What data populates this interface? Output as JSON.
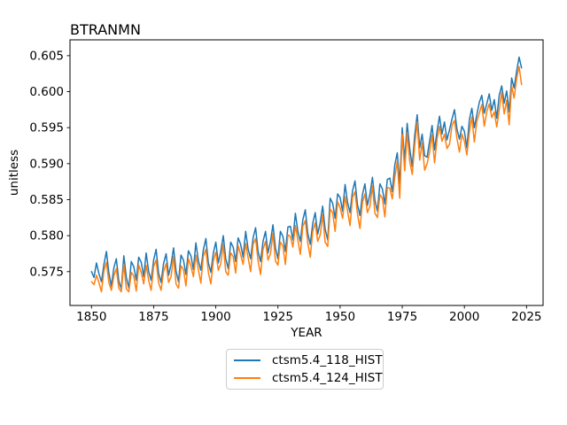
{
  "figure": {
    "title": "BTRANMN",
    "xlabel": "YEAR",
    "ylabel": "unitless"
  },
  "legend": {
    "entries": [
      {
        "label": "ctsm5.4_118_HIST",
        "color": "#1f77b4"
      },
      {
        "label": "ctsm5.4_124_HIST",
        "color": "#ff7f0e"
      }
    ]
  },
  "chart_data": {
    "type": "line",
    "title": "BTRANMN",
    "xlabel": "YEAR",
    "ylabel": "unitless",
    "grid": false,
    "legend_position": "below-axes-center",
    "xlim": [
      1841.35,
      2031.65
    ],
    "ylim": [
      0.5703,
      0.6072
    ],
    "xticks": [
      1850,
      1875,
      1900,
      1925,
      1950,
      1975,
      2000,
      2025
    ],
    "xtick_labels": [
      "1850",
      "1875",
      "1900",
      "1925",
      "1950",
      "1975",
      "2000",
      "2025"
    ],
    "yticks": [
      0.575,
      0.58,
      0.585,
      0.59,
      0.595,
      0.6,
      0.605
    ],
    "ytick_labels": [
      "0.575",
      "0.580",
      "0.585",
      "0.590",
      "0.595",
      "0.600",
      "0.605"
    ],
    "x": [
      1850,
      1851,
      1852,
      1853,
      1854,
      1855,
      1856,
      1857,
      1858,
      1859,
      1860,
      1861,
      1862,
      1863,
      1864,
      1865,
      1866,
      1867,
      1868,
      1869,
      1870,
      1871,
      1872,
      1873,
      1874,
      1875,
      1876,
      1877,
      1878,
      1879,
      1880,
      1881,
      1882,
      1883,
      1884,
      1885,
      1886,
      1887,
      1888,
      1889,
      1890,
      1891,
      1892,
      1893,
      1894,
      1895,
      1896,
      1897,
      1898,
      1899,
      1900,
      1901,
      1902,
      1903,
      1904,
      1905,
      1906,
      1907,
      1908,
      1909,
      1910,
      1911,
      1912,
      1913,
      1914,
      1915,
      1916,
      1917,
      1918,
      1919,
      1920,
      1921,
      1922,
      1923,
      1924,
      1925,
      1926,
      1927,
      1928,
      1929,
      1930,
      1931,
      1932,
      1933,
      1934,
      1935,
      1936,
      1937,
      1938,
      1939,
      1940,
      1941,
      1942,
      1943,
      1944,
      1945,
      1946,
      1947,
      1948,
      1949,
      1950,
      1951,
      1952,
      1953,
      1954,
      1955,
      1956,
      1957,
      1958,
      1959,
      1960,
      1961,
      1962,
      1963,
      1964,
      1965,
      1966,
      1967,
      1968,
      1969,
      1970,
      1971,
      1972,
      1973,
      1974,
      1975,
      1976,
      1977,
      1978,
      1979,
      1980,
      1981,
      1982,
      1983,
      1984,
      1985,
      1986,
      1987,
      1988,
      1989,
      1990,
      1991,
      1992,
      1993,
      1994,
      1995,
      1996,
      1997,
      1998,
      1999,
      2000,
      2001,
      2002,
      2003,
      2004,
      2005,
      2006,
      2007,
      2008,
      2009,
      2010,
      2011,
      2012,
      2013,
      2014,
      2015,
      2016,
      2017,
      2018,
      2019,
      2020,
      2021,
      2022,
      2023
    ],
    "series": [
      {
        "name": "ctsm5.4_118_HIST",
        "color": "#1f77b4",
        "values": [
          0.575,
          0.5742,
          0.5762,
          0.5747,
          0.5736,
          0.576,
          0.5778,
          0.5748,
          0.573,
          0.5755,
          0.5768,
          0.5737,
          0.5726,
          0.5772,
          0.5742,
          0.5727,
          0.5764,
          0.5757,
          0.5738,
          0.577,
          0.5763,
          0.5743,
          0.5776,
          0.575,
          0.5738,
          0.5766,
          0.5781,
          0.5748,
          0.5735,
          0.5761,
          0.5775,
          0.5745,
          0.576,
          0.5783,
          0.5751,
          0.5736,
          0.5773,
          0.5766,
          0.5746,
          0.5779,
          0.5772,
          0.5753,
          0.579,
          0.5765,
          0.5752,
          0.578,
          0.5796,
          0.5762,
          0.5749,
          0.5776,
          0.5791,
          0.5762,
          0.5778,
          0.58,
          0.5768,
          0.5754,
          0.5791,
          0.5784,
          0.5764,
          0.5797,
          0.5788,
          0.577,
          0.5806,
          0.5781,
          0.5768,
          0.5797,
          0.5811,
          0.5778,
          0.5764,
          0.5792,
          0.5806,
          0.5776,
          0.5792,
          0.5815,
          0.5783,
          0.5768,
          0.5806,
          0.5799,
          0.5778,
          0.5812,
          0.5813,
          0.5794,
          0.5831,
          0.5806,
          0.5792,
          0.5822,
          0.5836,
          0.5803,
          0.5788,
          0.5817,
          0.5832,
          0.5802,
          0.5818,
          0.5841,
          0.5809,
          0.5794,
          0.5852,
          0.5845,
          0.5824,
          0.5858,
          0.5853,
          0.5834,
          0.5871,
          0.5846,
          0.5832,
          0.5862,
          0.5876,
          0.5843,
          0.5828,
          0.5857,
          0.5872,
          0.5842,
          0.5858,
          0.5881,
          0.5849,
          0.5834,
          0.5872,
          0.5865,
          0.5844,
          0.5878,
          0.588,
          0.5861,
          0.5898,
          0.5915,
          0.5872,
          0.595,
          0.5905,
          0.5956,
          0.5921,
          0.5896,
          0.5939,
          0.5968,
          0.5922,
          0.5941,
          0.5911,
          0.5909,
          0.5931,
          0.5953,
          0.5919,
          0.5945,
          0.5966,
          0.5941,
          0.5958,
          0.5933,
          0.5947,
          0.5962,
          0.5975,
          0.5948,
          0.5934,
          0.5952,
          0.5945,
          0.5922,
          0.5961,
          0.5977,
          0.595,
          0.5968,
          0.5985,
          0.5995,
          0.597,
          0.5983,
          0.5997,
          0.5974,
          0.5989,
          0.5963,
          0.5995,
          0.6008,
          0.5984,
          0.6001,
          0.5972,
          0.6019,
          0.6005,
          0.6028,
          0.6048,
          0.6033
        ]
      },
      {
        "name": "ctsm5.4_124_HIST",
        "color": "#ff7f0e",
        "values": [
          0.5736,
          0.5732,
          0.5745,
          0.5735,
          0.5722,
          0.5751,
          0.5763,
          0.5735,
          0.5724,
          0.5744,
          0.5754,
          0.5727,
          0.5722,
          0.576,
          0.5726,
          0.5722,
          0.5749,
          0.5744,
          0.5723,
          0.5759,
          0.5749,
          0.5733,
          0.5759,
          0.5738,
          0.5724,
          0.5757,
          0.5766,
          0.5735,
          0.5724,
          0.575,
          0.5761,
          0.5735,
          0.5743,
          0.5771,
          0.5733,
          0.5727,
          0.5758,
          0.5753,
          0.573,
          0.5768,
          0.5758,
          0.5743,
          0.5773,
          0.5753,
          0.5734,
          0.5771,
          0.5781,
          0.5749,
          0.5733,
          0.5765,
          0.5777,
          0.5752,
          0.5761,
          0.5788,
          0.575,
          0.5745,
          0.5776,
          0.5771,
          0.5748,
          0.5786,
          0.5774,
          0.576,
          0.5789,
          0.5769,
          0.575,
          0.5788,
          0.5796,
          0.5765,
          0.5746,
          0.5781,
          0.5792,
          0.5766,
          0.5775,
          0.5803,
          0.5765,
          0.5759,
          0.5791,
          0.5786,
          0.576,
          0.5801,
          0.5799,
          0.5784,
          0.5814,
          0.5794,
          0.5774,
          0.5813,
          0.5821,
          0.579,
          0.577,
          0.5806,
          0.5818,
          0.5792,
          0.5801,
          0.5829,
          0.5791,
          0.5785,
          0.5837,
          0.5832,
          0.5806,
          0.5847,
          0.5839,
          0.5824,
          0.5854,
          0.5834,
          0.5814,
          0.5853,
          0.5861,
          0.583,
          0.581,
          0.5846,
          0.5858,
          0.5832,
          0.5841,
          0.5869,
          0.5831,
          0.5825,
          0.5857,
          0.5852,
          0.5826,
          0.5867,
          0.5866,
          0.5851,
          0.5881,
          0.5903,
          0.5852,
          0.5941,
          0.589,
          0.5943,
          0.5903,
          0.5885,
          0.5925,
          0.5958,
          0.5905,
          0.5929,
          0.5891,
          0.59,
          0.5916,
          0.594,
          0.5901,
          0.5934,
          0.5952,
          0.5931,
          0.5941,
          0.5921,
          0.5927,
          0.5953,
          0.596,
          0.5935,
          0.5916,
          0.5941,
          0.5931,
          0.5912,
          0.5944,
          0.5965,
          0.593,
          0.5959,
          0.597,
          0.5982,
          0.5952,
          0.5972,
          0.5983,
          0.5964,
          0.5972,
          0.5951,
          0.5975,
          0.5999,
          0.5969,
          0.5988,
          0.5954,
          0.6008,
          0.5991,
          0.6018,
          0.6035,
          0.601
        ]
      }
    ]
  }
}
